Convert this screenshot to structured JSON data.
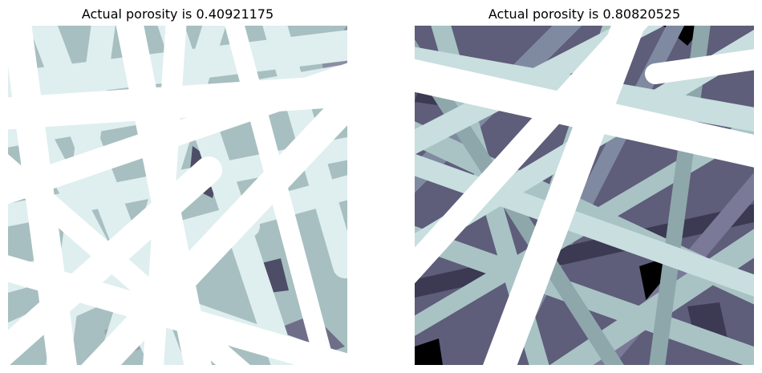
{
  "figure": {
    "panels": [
      {
        "title": "Actual porosity is 0.40921175",
        "colormap": "bone",
        "palette": {
          "deep": "#4e4d68",
          "mid": "#a7bfc0",
          "light": "#dfeeef",
          "bright": "#ffffff"
        }
      },
      {
        "title": "Actual porosity is 0.80820525",
        "colormap": "bone",
        "palette": {
          "void": "#000000",
          "deep": "#3b3a52",
          "dark": "#5e5d7a",
          "mid": "#a9c3c4",
          "light": "#c8dedf",
          "bright": "#ffffff"
        }
      }
    ]
  }
}
